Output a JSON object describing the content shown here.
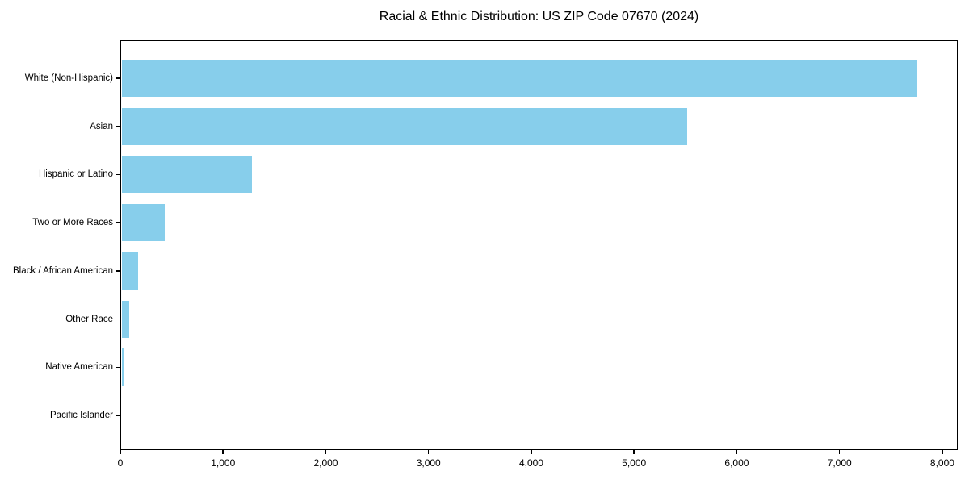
{
  "chart_data": {
    "type": "bar",
    "orientation": "horizontal",
    "title": "Racial & Ethnic Distribution: US ZIP Code 07670 (2024)",
    "categories": [
      "White (Non-Hispanic)",
      "Asian",
      "Hispanic or Latino",
      "Two or More Races",
      "Black / African American",
      "Other Race",
      "Native American",
      "Pacific Islander"
    ],
    "values": [
      7760,
      5520,
      1280,
      430,
      175,
      85,
      40,
      0
    ],
    "xlabel": "",
    "ylabel": "",
    "xlim": [
      0,
      8150
    ],
    "xticks": [
      0,
      1000,
      2000,
      3000,
      4000,
      5000,
      6000,
      7000,
      8000
    ],
    "xtick_labels": [
      "0",
      "1,000",
      "2,000",
      "3,000",
      "4,000",
      "5,000",
      "6,000",
      "7,000",
      "8,000"
    ],
    "bar_color": "#87CEEB",
    "text_color": "#000000",
    "axis_color": "#000000",
    "background_color": "#FFFFFF",
    "grid": false,
    "legend_position": "none",
    "sort_order": "descending"
  }
}
